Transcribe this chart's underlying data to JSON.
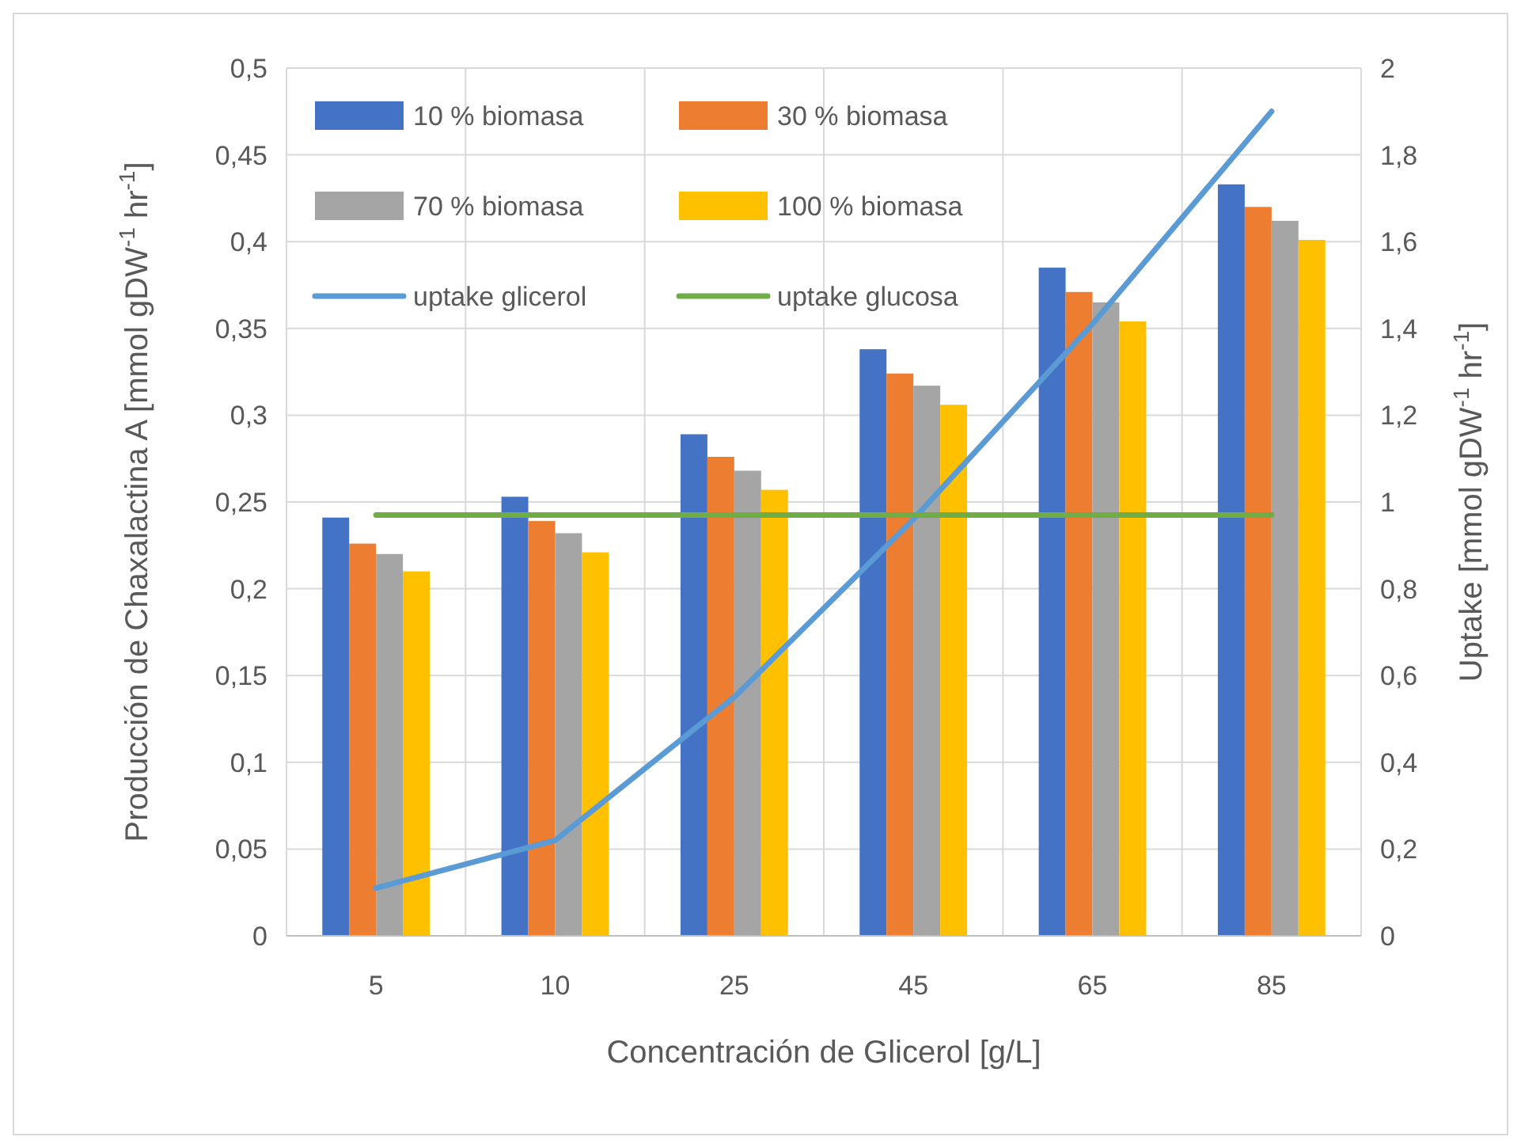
{
  "chart_data": {
    "type": "bar",
    "categories": [
      "5",
      "10",
      "25",
      "45",
      "65",
      "85"
    ],
    "xlabel": "Concentración de Glicerol [g/L]",
    "ylabel": "Producción de Chaxalactina A [mmol gDW$^{-1}$ hr$^{-1}$]",
    "y2label": "Uptake [mmol gDW$^{-1}$ hr$^{-1}$]",
    "series": [
      {
        "name": "10 % biomasa",
        "color": "#4472c4",
        "values": [
          0.241,
          0.253,
          0.289,
          0.338,
          0.385,
          0.433
        ]
      },
      {
        "name": "30 % biomasa",
        "color": "#ed7d31",
        "values": [
          0.226,
          0.239,
          0.276,
          0.324,
          0.371,
          0.42
        ]
      },
      {
        "name": "70 % biomasa",
        "color": "#a5a5a5",
        "values": [
          0.22,
          0.232,
          0.268,
          0.317,
          0.365,
          0.412
        ]
      },
      {
        "name": "100 % biomasa",
        "color": "#ffc000",
        "values": [
          0.21,
          0.221,
          0.257,
          0.306,
          0.354,
          0.401
        ]
      },
      {
        "name": "uptake glicerol",
        "type": "line",
        "axis": "y2",
        "color": "#5b9bd5",
        "values": [
          0.11,
          0.22,
          0.55,
          0.96,
          1.41,
          1.9
        ]
      },
      {
        "name": "uptake glucosa",
        "type": "line",
        "axis": "y2",
        "color": "#70ad47",
        "values": [
          0.97,
          0.97,
          0.97,
          0.97,
          0.97,
          0.97
        ]
      }
    ],
    "ylim": [
      0,
      0.5
    ],
    "yticks": [
      0,
      {
        "value": 0.05,
        "label": "0,05"
      },
      {
        "value": 0.1,
        "label": "0,1"
      },
      {
        "value": 0.15,
        "label": "0,15"
      },
      {
        "value": 0.2,
        "label": "0,2"
      },
      {
        "value": 0.25,
        "label": "0,25"
      },
      {
        "value": 0.3,
        "label": "0,3"
      },
      {
        "value": 0.35,
        "label": "0,35"
      },
      {
        "value": 0.4,
        "label": "0,4"
      },
      {
        "value": 0.45,
        "label": "0,45"
      },
      {
        "value": 0.5,
        "label": "0,5"
      }
    ],
    "y2lim": [
      0,
      2
    ],
    "y2ticks": [
      0,
      {
        "value": 0.2,
        "label": "0,2"
      },
      {
        "value": 0.4,
        "label": "0,4"
      },
      {
        "value": 0.6,
        "label": "0,6"
      },
      {
        "value": 0.8,
        "label": "0,8"
      },
      1,
      {
        "value": 1.2,
        "label": "1,2"
      },
      {
        "value": 1.4,
        "label": "1,4"
      },
      {
        "value": 1.6,
        "label": "1,6"
      },
      {
        "value": 1.8,
        "label": "1,8"
      },
      2
    ],
    "grid": true,
    "legend": "top left",
    "line_style": "solid",
    "marker": "none"
  }
}
